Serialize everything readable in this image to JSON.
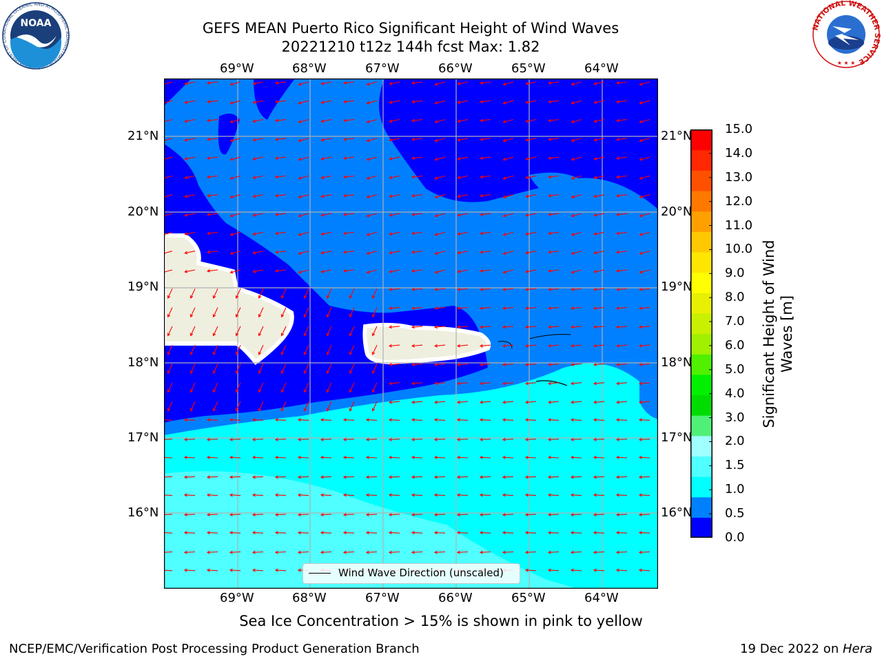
{
  "header": {
    "title_line1": "GEFS MEAN Puerto Rico Significant Height of Wind Waves",
    "title_line2": "20221210 t12z 144h fcst   Max: 1.82"
  },
  "logos": {
    "noaa_text": "NOAA",
    "noaa_ring_text": "NATIONAL OCEANIC AND ATMOSPHERIC ADMINISTRATION · U.S. DEPARTMENT OF COMMERCE",
    "nws_ring_text": "NATIONAL WEATHER SERVICE"
  },
  "map": {
    "lon_labels": [
      "69°W",
      "68°W",
      "67°W",
      "66°W",
      "65°W",
      "64°W"
    ],
    "lat_labels": [
      "21°N",
      "20°N",
      "19°N",
      "18°N",
      "17°N",
      "16°N"
    ],
    "legend_label": "Wind Wave Direction (unscaled)",
    "arrow_color": "#ff0000",
    "land_color": "#efefdf"
  },
  "colorbar": {
    "label_line1": "Significant Height of Wind",
    "label_line2": "Waves [m]",
    "ticks": [
      "0.0",
      "0.5",
      "1.0",
      "1.5",
      "2.0",
      "3.0",
      "4.0",
      "5.0",
      "6.0",
      "7.0",
      "8.0",
      "9.0",
      "10.0",
      "11.0",
      "12.0",
      "13.0",
      "14.0",
      "15.0"
    ],
    "colors": [
      "#0000ff",
      "#0080ff",
      "#00ffff",
      "#50ffff",
      "#a0ffff",
      "#50f078",
      "#00dc00",
      "#00f000",
      "#50f000",
      "#a0f000",
      "#c8f000",
      "#e6f000",
      "#ffff00",
      "#ffe600",
      "#ffc800",
      "#ffa000",
      "#ff7800",
      "#ff5000",
      "#ff2800",
      "#ff0000"
    ]
  },
  "note": "Sea Ice Concentration > 15% is shown in pink to yellow",
  "footer": {
    "left": "NCEP/EMC/Verification Post Processing Product Generation Branch",
    "date": "19 Dec 2022 on ",
    "machine": "Hera"
  }
}
